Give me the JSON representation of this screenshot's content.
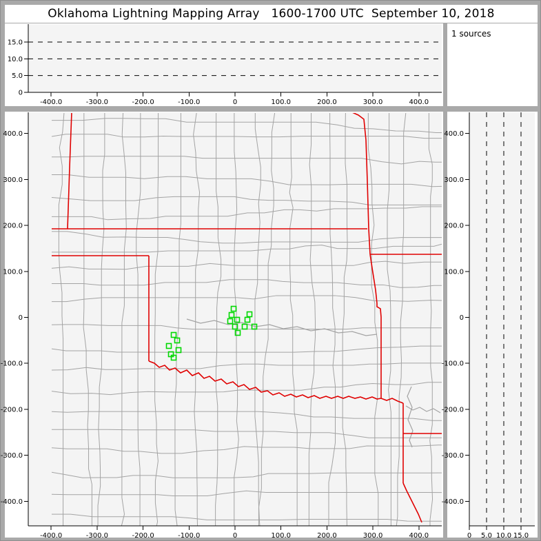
{
  "window_title": "Oklahoma Lightning Mapping Array   1600-1700 UTC  September 10, 2018",
  "sources_panel": {
    "label": "1 sources"
  },
  "colors": {
    "frame": "#a9a9a9",
    "panel_bg": "#ffffff",
    "plot_bg": "#f4f4f4",
    "county_line": "#a3a3a3",
    "state_border": "#e00000",
    "marker": "#00d800",
    "axis": "#000000"
  },
  "axes": {
    "ew_ticks": [
      {
        "km": -400,
        "label": "-400.0"
      },
      {
        "km": -300,
        "label": "-300.0"
      },
      {
        "km": -200,
        "label": "-200.0"
      },
      {
        "km": -100,
        "label": "-100.0"
      },
      {
        "km": 0,
        "label": "0"
      },
      {
        "km": 100,
        "label": "100.0"
      },
      {
        "km": 200,
        "label": "200.0"
      },
      {
        "km": 300,
        "label": "300.0"
      },
      {
        "km": 400,
        "label": "400.0"
      }
    ],
    "ns_ticks": [
      {
        "km": 400,
        "label": "400.0"
      },
      {
        "km": 300,
        "label": "300.0"
      },
      {
        "km": 200,
        "label": "200.0"
      },
      {
        "km": 100,
        "label": "100.0"
      },
      {
        "km": 0,
        "label": "0"
      },
      {
        "km": -100,
        "label": "-100.0"
      },
      {
        "km": -200,
        "label": "-200.0"
      },
      {
        "km": -300,
        "label": "-300.0"
      },
      {
        "km": -400,
        "label": "-400.0"
      }
    ],
    "alt_ticks": [
      {
        "km": 0,
        "label": "0"
      },
      {
        "km": 5,
        "label": "5.0"
      },
      {
        "km": 10,
        "label": "10.0"
      },
      {
        "km": 15,
        "label": "15.0"
      }
    ]
  },
  "chart_data": {
    "type": "scatter",
    "title": "Oklahoma Lightning Mapping Array plan view and altitude projections",
    "x_range_km": [
      -450,
      450
    ],
    "y_range_km": [
      -450,
      450
    ],
    "alt_range_km": [
      0,
      20
    ],
    "alt_gridlines_km": [
      5,
      10,
      15
    ],
    "points_km": [
      [
        -3.0,
        18.7
      ],
      [
        -7.5,
        5.2
      ],
      [
        -10.5,
        -8.2
      ],
      [
        4.5,
        -5.2
      ],
      [
        0.0,
        -20.2
      ],
      [
        6.0,
        -33.7
      ],
      [
        31.5,
        6.7
      ],
      [
        27.0,
        -5.2
      ],
      [
        21.0,
        -20.2
      ],
      [
        42.0,
        -20.2
      ],
      [
        -133.4,
        -38.2
      ],
      [
        -125.9,
        -50.2
      ],
      [
        -143.9,
        -62.2
      ],
      [
        -122.9,
        -71.2
      ],
      [
        -139.4,
        -80.2
      ],
      [
        -133.4,
        -87.7
      ]
    ]
  },
  "map": {
    "state_borders": [
      [
        [
          63,
          0
        ],
        [
          60,
          80
        ],
        [
          58,
          140
        ],
        [
          57,
          169
        ]
      ],
      [
        [
          0,
          169
        ],
        [
          492,
          169
        ]
      ],
      [
        [
          470,
          0
        ],
        [
          479,
          4
        ],
        [
          487,
          10
        ],
        [
          490,
          40
        ],
        [
          492,
          100
        ],
        [
          494,
          169
        ],
        [
          496,
          206
        ]
      ],
      [
        [
          496,
          206
        ],
        [
          600,
          206
        ]
      ],
      [
        [
          496,
          206
        ],
        [
          499,
          226
        ],
        [
          504,
          258
        ],
        [
          506,
          277
        ],
        [
          506,
          282
        ],
        [
          511,
          285
        ],
        [
          512,
          297
        ],
        [
          512,
          415
        ]
      ],
      [
        [
          0,
          208
        ],
        [
          175,
          208
        ]
      ],
      [
        [
          175,
          208
        ],
        [
          175,
          361
        ]
      ],
      [
        [
          175,
          361
        ],
        [
          183,
          364
        ],
        [
          190,
          370
        ],
        [
          198,
          367
        ],
        [
          205,
          374
        ],
        [
          213,
          371
        ],
        [
          221,
          378
        ],
        [
          230,
          374
        ],
        [
          238,
          382
        ],
        [
          247,
          378
        ],
        [
          255,
          386
        ],
        [
          263,
          383
        ],
        [
          271,
          390
        ],
        [
          280,
          387
        ],
        [
          288,
          394
        ],
        [
          297,
          391
        ],
        [
          305,
          398
        ],
        [
          313,
          395
        ],
        [
          321,
          402
        ],
        [
          330,
          399
        ],
        [
          338,
          406
        ],
        [
          347,
          404
        ],
        [
          355,
          410
        ],
        [
          364,
          407
        ],
        [
          372,
          412
        ],
        [
          381,
          409
        ],
        [
          389,
          413
        ],
        [
          398,
          410
        ],
        [
          406,
          414
        ],
        [
          415,
          411
        ],
        [
          423,
          415
        ],
        [
          432,
          412
        ],
        [
          440,
          415
        ],
        [
          449,
          412
        ],
        [
          457,
          415
        ],
        [
          465,
          412
        ],
        [
          474,
          415
        ],
        [
          482,
          413
        ],
        [
          490,
          416
        ],
        [
          499,
          413
        ],
        [
          506,
          416
        ],
        [
          512,
          415
        ]
      ],
      [
        [
          512,
          415
        ],
        [
          520,
          418
        ],
        [
          528,
          415
        ],
        [
          536,
          419
        ],
        [
          544,
          422
        ]
      ],
      [
        [
          544,
          422
        ],
        [
          544,
          466
        ]
      ],
      [
        [
          544,
          466
        ],
        [
          600,
          466
        ]
      ],
      [
        [
          544,
          466
        ],
        [
          544,
          538
        ]
      ],
      [
        [
          544,
          538
        ],
        [
          549,
          549
        ],
        [
          555,
          561
        ],
        [
          560,
          571
        ],
        [
          566,
          583
        ],
        [
          571,
          595
        ]
      ]
    ],
    "rivers": [
      [
        [
          556,
          398
        ],
        [
          550,
          412
        ],
        [
          557,
          428
        ],
        [
          551,
          446
        ],
        [
          558,
          462
        ],
        [
          553,
          476
        ],
        [
          557,
          486
        ]
      ],
      [
        [
          548,
          426
        ],
        [
          558,
          432
        ],
        [
          568,
          428
        ],
        [
          578,
          434
        ],
        [
          588,
          430
        ],
        [
          598,
          436
        ]
      ],
      [
        [
          230,
          300
        ],
        [
          250,
          306
        ],
        [
          270,
          302
        ],
        [
          290,
          308
        ],
        [
          310,
          305
        ],
        [
          330,
          311
        ],
        [
          350,
          308
        ],
        [
          370,
          314
        ],
        [
          390,
          311
        ],
        [
          410,
          317
        ],
        [
          430,
          314
        ],
        [
          450,
          320
        ],
        [
          470,
          318
        ],
        [
          490,
          324
        ],
        [
          506,
          322
        ]
      ]
    ]
  },
  "county_grid": {
    "seed": 11,
    "min_cell": 22,
    "max_cell": 34
  }
}
